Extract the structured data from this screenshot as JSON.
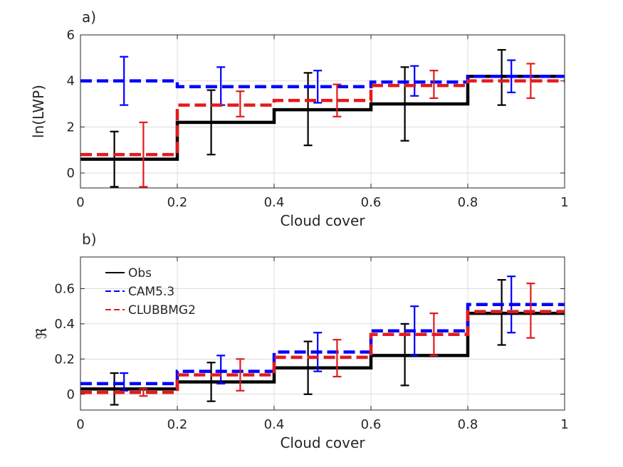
{
  "chart_data": [
    {
      "panel_label": "a)",
      "type": "line",
      "xlabel": "Cloud cover",
      "ylabel": "ln(LWP)",
      "xlim": [
        0,
        1
      ],
      "ylim": [
        -0.65,
        6
      ],
      "xticks": [
        "0",
        "0.2",
        "0.4",
        "0.6",
        "0.8",
        "1"
      ],
      "yticks": [
        "0",
        "2",
        "4",
        "6"
      ],
      "grid": true,
      "bin_edges": [
        0,
        0.2,
        0.4,
        0.6,
        0.8,
        1.0
      ],
      "series": [
        {
          "color": "#000000",
          "dash": "solid",
          "values": [
            0.6,
            2.2,
            2.75,
            3.0,
            4.2
          ],
          "err_x": [
            0.07,
            0.27,
            0.47,
            0.67,
            0.87
          ],
          "err_low": [
            -0.6,
            0.8,
            1.2,
            1.4,
            2.95
          ],
          "err_high": [
            1.8,
            3.6,
            4.35,
            4.6,
            5.35
          ]
        },
        {
          "color": "#0000ff",
          "dash": "dashed",
          "values": [
            4.0,
            3.75,
            3.75,
            3.95,
            4.2
          ],
          "err_x": [
            0.09,
            0.29,
            0.49,
            0.69,
            0.89
          ],
          "err_low": [
            2.95,
            2.95,
            3.05,
            3.35,
            3.5
          ],
          "err_high": [
            5.05,
            4.6,
            4.45,
            4.65,
            4.9
          ]
        },
        {
          "color": "#e41a1c",
          "dash": "dashed",
          "values": [
            0.8,
            2.95,
            3.15,
            3.8,
            4.0
          ],
          "err_x": [
            0.13,
            0.33,
            0.53,
            0.73,
            0.93
          ],
          "err_low": [
            -0.6,
            2.45,
            2.45,
            3.25,
            3.25
          ],
          "err_high": [
            2.2,
            3.55,
            3.85,
            4.45,
            4.75
          ]
        }
      ]
    },
    {
      "panel_label": "b)",
      "type": "line",
      "xlabel": "Cloud cover",
      "ylabel": "ℜ",
      "xlim": [
        0,
        1
      ],
      "ylim": [
        -0.09,
        0.78
      ],
      "xticks": [
        "0",
        "0.2",
        "0.4",
        "0.6",
        "0.8",
        "1"
      ],
      "yticks": [
        "0",
        "0.2",
        "0.4",
        "0.6"
      ],
      "grid": true,
      "legend_position": "top-left",
      "bin_edges": [
        0,
        0.2,
        0.4,
        0.6,
        0.8,
        1.0
      ],
      "series": [
        {
          "name": "Obs",
          "color": "#000000",
          "dash": "solid",
          "values": [
            0.03,
            0.07,
            0.15,
            0.22,
            0.46
          ],
          "err_x": [
            0.07,
            0.27,
            0.47,
            0.67,
            0.87
          ],
          "err_low": [
            -0.06,
            -0.04,
            0.0,
            0.05,
            0.28
          ],
          "err_high": [
            0.12,
            0.18,
            0.3,
            0.4,
            0.65
          ]
        },
        {
          "name": "CAM5.3",
          "color": "#0000ff",
          "dash": "dashed",
          "values": [
            0.06,
            0.13,
            0.24,
            0.36,
            0.51
          ],
          "err_x": [
            0.09,
            0.29,
            0.49,
            0.69,
            0.89
          ],
          "err_low": [
            0.02,
            0.06,
            0.13,
            0.22,
            0.35
          ],
          "err_high": [
            0.12,
            0.22,
            0.35,
            0.5,
            0.67
          ]
        },
        {
          "name": "CLUBBMG2",
          "color": "#e41a1c",
          "dash": "dashed",
          "values": [
            0.01,
            0.11,
            0.21,
            0.34,
            0.47
          ],
          "err_x": [
            0.13,
            0.33,
            0.53,
            0.73,
            0.93
          ],
          "err_low": [
            -0.01,
            0.02,
            0.1,
            0.22,
            0.32
          ],
          "err_high": [
            0.03,
            0.2,
            0.31,
            0.46,
            0.63
          ]
        }
      ]
    }
  ]
}
